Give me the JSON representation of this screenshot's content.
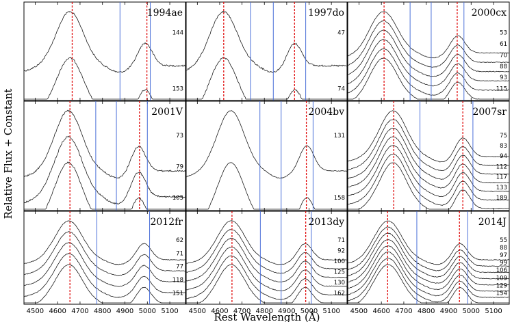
{
  "chart_data": {
    "type": "line",
    "xlabel": "Rest Wavelength (Å)",
    "ylabel": "Relative Flux + Constant",
    "xlim": [
      4450,
      5170
    ],
    "xticks": [
      4500,
      4600,
      4700,
      4800,
      4900,
      5000,
      5100
    ],
    "tick_labels": [
      "4500",
      "4600",
      "4700",
      "4800",
      "4900",
      "5000",
      "5100"
    ],
    "panels": [
      {
        "name": "1994ae",
        "epochs": [
          "144",
          "153"
        ],
        "red_lines": [
          4665,
          4998
        ],
        "blue_lines": [
          4878,
          5013
        ],
        "peak1": 4655,
        "peak2": 4990
      },
      {
        "name": "1997do",
        "epochs": [
          "47",
          "74"
        ],
        "red_lines": [
          4618,
          4935
        ],
        "blue_lines": [
          4738,
          4840,
          4985
        ],
        "peak1": 4618,
        "peak2": 4935
      },
      {
        "name": "2000cx",
        "epochs": [
          "53",
          "61",
          "70",
          "88",
          "93",
          "115"
        ],
        "red_lines": [
          4612,
          4938
        ],
        "blue_lines": [
          4728,
          4822,
          4968
        ],
        "peak1": 4610,
        "peak2": 4940
      },
      {
        "name": "2001V",
        "epochs": [
          "73",
          "79",
          "105"
        ],
        "red_lines": [
          4655,
          4965
        ],
        "blue_lines": [
          4770,
          4862,
          5000
        ],
        "peak1": 4648,
        "peak2": 4960
      },
      {
        "name": "2004bv",
        "epochs": [
          "131",
          "158"
        ],
        "red_lines": [
          4988
        ],
        "blue_lines": [
          4780,
          4875,
          5018
        ],
        "peak1": 4650,
        "peak2": 4990
      },
      {
        "name": "2007sr",
        "epochs": [
          "75",
          "83",
          "94",
          "112",
          "117",
          "133",
          "189"
        ],
        "red_lines": [
          4655,
          4963
        ],
        "blue_lines": [
          4772,
          5008
        ],
        "peak1": 4652,
        "peak2": 4962
      },
      {
        "name": "2012fr",
        "epochs": [
          "62",
          "71",
          "77",
          "118",
          "151"
        ],
        "red_lines": [
          4655
        ],
        "blue_lines": [
          4775,
          5010
        ],
        "peak1": 4650,
        "peak2": 4985
      },
      {
        "name": "2013dy",
        "epochs": [
          "71",
          "92",
          "100",
          "125",
          "130",
          "162"
        ],
        "red_lines": [
          4655,
          4985
        ],
        "blue_lines": [
          4782,
          4875,
          5010
        ],
        "peak1": 4652,
        "peak2": 4982
      },
      {
        "name": "2014J",
        "epochs": [
          "55",
          "88",
          "97",
          "99",
          "106",
          "109",
          "129",
          "154"
        ],
        "red_lines": [
          4628,
          4948
        ],
        "blue_lines": [
          4758,
          4985
        ],
        "peak1": 4630,
        "peak2": 4950
      }
    ]
  }
}
